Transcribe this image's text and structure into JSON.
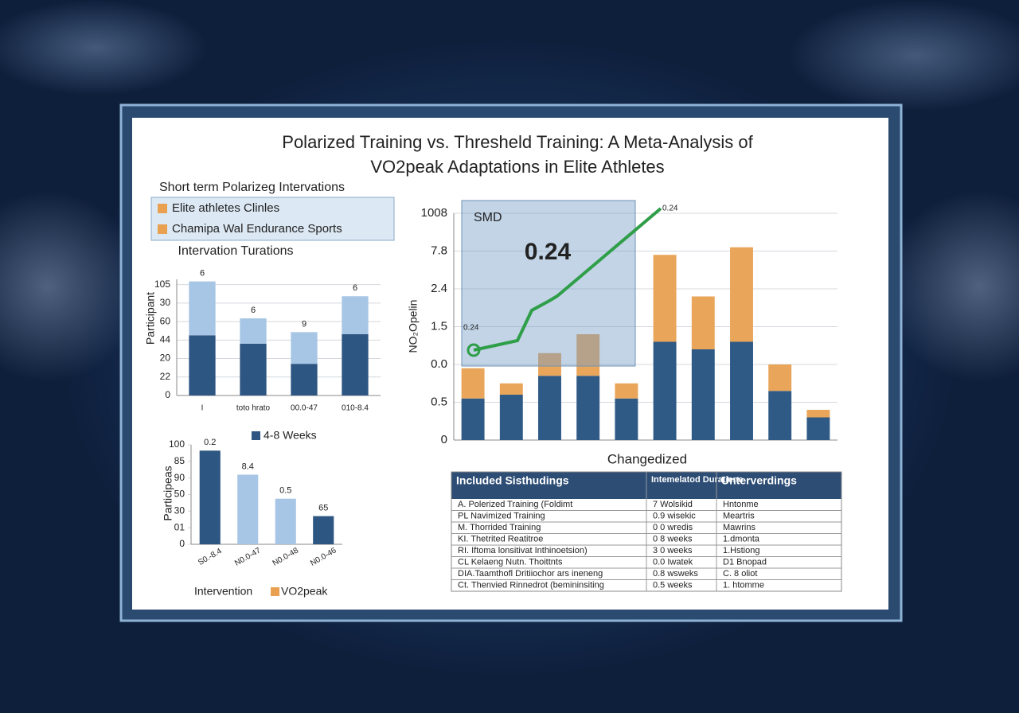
{
  "header": {
    "title_lines": [
      "Polarized Training vs. Thresheld Training: A Meta-Analysis of",
      "VO2peak Adaptations in Elite Athletes"
    ]
  },
  "key": {
    "title": "Short term Polarizeg Intervations",
    "entries": [
      {
        "name": "Elite athletes Clinles",
        "color": "#e9a050"
      },
      {
        "name": "Chamipa Wal Endurance Sports",
        "color": "#e9a050"
      }
    ]
  },
  "chart_data": [
    {
      "type": "bar",
      "stacked": true,
      "title": "Intervation Turations",
      "y_label": "Participant",
      "categories": [
        "I",
        "toto hrato",
        "00.0-47",
        "010-8.4"
      ],
      "series": [
        {
          "name": "4-8 Weeks",
          "color": "#2e5682",
          "values": [
            57,
            49,
            30,
            58
          ]
        },
        {
          "color": "#a7c6e5",
          "values": [
            51,
            24,
            30,
            36
          ]
        }
      ],
      "bar_notes": [
        "6",
        "6",
        "9",
        "6"
      ],
      "ylim": [
        0,
        110
      ],
      "yticks": [
        0,
        {
          "value": 17.5,
          "label": "22"
        },
        {
          "value": 35,
          "label": "20"
        },
        {
          "value": 52.5,
          "label": "44"
        },
        {
          "value": 70,
          "label": "60"
        },
        {
          "value": 87.5,
          "label": "30"
        },
        105
      ],
      "grid": true
    },
    {
      "type": "bar",
      "y_label": "Participeas",
      "categories": [
        "S0.-8.4",
        "N0.0-47",
        "N0.0-48",
        "N0.0-46"
      ],
      "values": [
        113,
        84,
        55,
        34
      ],
      "colors": [
        "#2e5682",
        "#a7c6e5",
        "#a7c6e5",
        "#2e5682"
      ],
      "bar_notes": [
        "0.2",
        "8.4",
        "0.5",
        "65"
      ],
      "legend": {
        "title": "Intervention",
        "entries": [
          {
            "name": "VO2peak",
            "color": "#e9a050"
          }
        ]
      },
      "ylim": [
        0,
        120
      ],
      "yticks": [
        0,
        {
          "value": 20,
          "label": "01"
        },
        {
          "value": 40,
          "label": "30"
        },
        {
          "value": 60,
          "label": "50"
        },
        {
          "value": 80,
          "label": "90"
        },
        {
          "value": 100,
          "label": "85"
        },
        {
          "value": 120,
          "label": "100"
        }
      ],
      "grid": false
    },
    {
      "type": "bar",
      "stacked": true,
      "x_label": "Changedized",
      "y_label": "NO₂Opelin",
      "categories": [
        null,
        null,
        null,
        null,
        null,
        null,
        null,
        null,
        null,
        null
      ],
      "series": [
        {
          "color": "#2f5a86",
          "values": [
            1.1,
            1.2,
            1.7,
            1.7,
            1.1,
            2.6,
            2.4,
            2.6,
            1.3,
            0.6
          ]
        },
        {
          "color": "#e9a55a",
          "values": [
            0.8,
            0.3,
            0.6,
            1.1,
            0.4,
            2.3,
            1.4,
            2.5,
            0.7,
            0.2
          ]
        }
      ],
      "ylim": [
        0,
        6
      ],
      "yticks": [
        0,
        {
          "value": 1,
          "label": "0.5"
        },
        {
          "value": 2,
          "label": "0.0"
        },
        {
          "value": 3,
          "label": "1.5"
        },
        {
          "value": 4,
          "label": "2.4"
        },
        {
          "value": 5,
          "label": "7.8"
        },
        {
          "value": 6,
          "label": "1008"
        }
      ],
      "grid": true,
      "inset": {
        "label": "SMD",
        "value_text": "0.24",
        "point_labels": [
          "0.24",
          "0.24"
        ]
      }
    }
  ],
  "table": {
    "header": [
      "Included Sisthudings",
      "Intemelatod Duratiene",
      "Unterverdings"
    ],
    "rows": [
      [
        "A. Polerized Training (Foldimt",
        "7 Wolsikid",
        "Hntonme"
      ],
      [
        "PL Navimized Training",
        "0.9 wisekic",
        "Meartris"
      ],
      [
        "M. Thorrided Training",
        "0 0 wredis",
        "Mawrins"
      ],
      [
        "KI. Thetrited Reatitroe",
        "0 8 weeks",
        "1.dmonta"
      ],
      [
        "RI. Iftoma lonsitivat Inthinoetsion)",
        "3 0 weeks",
        "1.Hstiong"
      ],
      [
        "CL Kelaeng Nutn. Thoittnts",
        "0.0 Iwatek",
        "D1 Bnopad"
      ],
      [
        "DIA.Taamthofl Dritiiochor ars ineneng",
        "0.8 wsweks",
        "C. 8 oliot"
      ],
      [
        "Ct. Thenvied Rinnedrot (bemininsiting",
        "0.5 weeks",
        "1. htomme"
      ]
    ]
  }
}
